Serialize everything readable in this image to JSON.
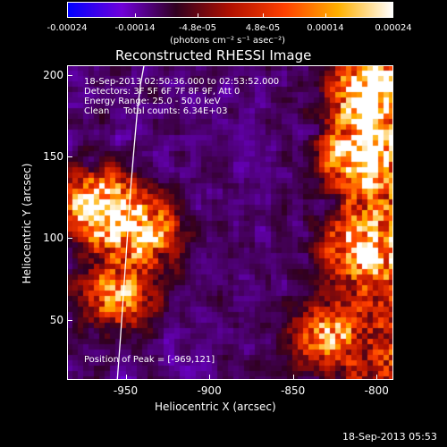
{
  "chart_data": {
    "type": "heatmap",
    "title": "Reconstructed RHESSI Image",
    "xlabel": "Heliocentric X (arcsec)",
    "ylabel": "Heliocentric Y (arcsec)",
    "xlim": [
      -985,
      -790
    ],
    "ylim": [
      13,
      206
    ],
    "x_ticks": [
      "-950",
      "-900",
      "-850",
      "-800"
    ],
    "y_ticks": [
      "50",
      "100",
      "150",
      "200"
    ],
    "colorbar": {
      "ticks": [
        "-0.00024",
        "-0.00014",
        "-4.8e-05",
        "4.8e-05",
        "0.00014",
        "0.00024"
      ],
      "units": "(photons cm⁻² s⁻¹ asec⁻²)",
      "range": [
        -0.00024,
        0.00024
      ],
      "colormap": [
        "#0000ff",
        "#7000d8",
        "#300020",
        "#b01000",
        "#ff4000",
        "#ffb000",
        "#ffffff"
      ]
    },
    "annotations": [
      "18-Sep-2013 02:50:36.000 to 02:53:52.000",
      "Detectors: 3F 5F 6F 7F 8F 9F, Att 0",
      "Energy Range: 25.0 - 50.0 keV",
      "Clean     Total counts: 6.34E+03"
    ],
    "peak_label": "Position of Peak = [-969,121]",
    "limb_curve": {
      "x": [
        -955,
        -953,
        -951,
        -949,
        -947,
        -945,
        -943,
        -941,
        -939
      ],
      "y": [
        13,
        40,
        70,
        100,
        130,
        155,
        178,
        195,
        206
      ],
      "color": "#ffffff"
    },
    "emission_sources": [
      {
        "name": "",
        "x": -965,
        "y": 118,
        "peak": 1.0
      },
      {
        "name": "",
        "x": -940,
        "y": 105,
        "peak": 0.75
      },
      {
        "name": "",
        "x": -955,
        "y": 65,
        "peak": 0.6
      },
      {
        "name": "",
        "x": -810,
        "y": 150,
        "peak": 0.95
      },
      {
        "name": "",
        "x": -805,
        "y": 190,
        "peak": 0.85
      },
      {
        "name": "",
        "x": -810,
        "y": 95,
        "peak": 0.7
      },
      {
        "name": "",
        "x": -830,
        "y": 40,
        "peak": 0.6
      }
    ]
  },
  "footer": {
    "timestamp": "18-Sep-2013 05:53"
  }
}
